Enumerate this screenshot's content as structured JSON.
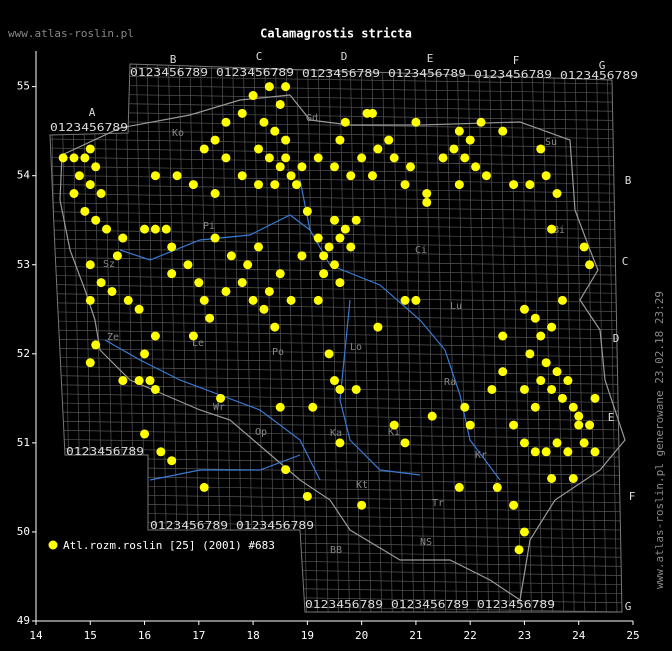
{
  "header": {
    "site": "www.atlas-roslin.pl",
    "title": "Calamagrostis stricta"
  },
  "side_note": "www.atlas-roslin.pl generowane 23.02.18 23:29",
  "grid_labels": {
    "columns": [
      "A",
      "B",
      "C",
      "D",
      "E",
      "F",
      "G"
    ],
    "digits": "0123456789"
  },
  "places": [
    "Ko",
    "Gd",
    "Su",
    "Pi",
    "Sz",
    "Ci",
    "Ze",
    "Le",
    "Po",
    "Lo",
    "Wr",
    "Lu",
    "Ki",
    "Ra",
    "Kt",
    "Tr",
    "NS",
    "BB",
    "Bi",
    "Ka",
    "Op",
    "Kr"
  ],
  "chart_data": {
    "type": "scatter",
    "xlim": [
      14,
      25
    ],
    "ylim": [
      49,
      55.4
    ],
    "xticks": [
      14,
      15,
      16,
      17,
      18,
      19,
      20,
      21,
      22,
      23,
      24,
      25
    ],
    "yticks": [
      49,
      50,
      51,
      52,
      53,
      54,
      55
    ],
    "series": [
      {
        "name": "Atl.rozm.roslin [25] (2001) #683",
        "color": "#ffff00",
        "x": [
          14.5,
          14.7,
          14.9,
          15.0,
          15.1,
          14.8,
          15.0,
          14.7,
          15.2,
          14.9,
          15.1,
          15.3,
          15.6,
          15.5,
          15.0,
          15.2,
          15.4,
          15.0,
          15.7,
          15.9,
          15.1,
          15.0,
          15.6,
          15.9,
          16.2,
          16.4,
          16.0,
          16.5,
          16.8,
          16.5,
          17.0,
          17.1,
          17.2,
          16.9,
          16.2,
          16.0,
          16.1,
          16.2,
          16.0,
          16.3,
          16.5,
          17.1,
          16.2,
          16.6,
          16.9,
          17.3,
          17.1,
          17.3,
          17.5,
          17.8,
          18.0,
          18.3,
          18.6,
          18.5,
          18.2,
          18.4,
          18.6,
          18.1,
          18.3,
          18.5,
          18.7,
          18.8,
          18.1,
          17.8,
          18.4,
          18.6,
          18.9,
          17.5,
          17.3,
          17.6,
          17.9,
          18.1,
          17.8,
          18.0,
          18.3,
          18.5,
          18.2,
          18.4,
          18.7,
          17.5,
          18.9,
          19.0,
          19.2,
          19.4,
          19.6,
          19.8,
          19.5,
          19.3,
          19.7,
          19.9,
          19.3,
          19.5,
          19.6,
          19.2,
          19.2,
          19.5,
          19.8,
          20.0,
          20.2,
          19.6,
          20.3,
          20.6,
          20.9,
          20.8,
          20.5,
          19.7,
          20.1,
          20.2,
          21.0,
          21.2,
          21.8,
          22.0,
          21.9,
          21.7,
          22.1,
          21.5,
          22.3,
          21.8,
          22.6,
          23.3,
          22.8,
          23.1,
          23.4,
          23.6,
          23.5,
          24.1,
          24.2,
          22.2,
          21.2,
          20.8,
          21.0,
          20.3,
          19.4,
          19.5,
          19.6,
          19.9,
          19.1,
          19.6,
          20.0,
          19.0,
          18.6,
          18.5,
          17.4,
          20.6,
          20.8,
          21.3,
          21.9,
          22.0,
          22.4,
          22.6,
          21.8,
          22.5,
          22.8,
          23.0,
          23.2,
          23.3,
          23.5,
          23.1,
          23.4,
          23.6,
          23.3,
          23.5,
          23.7,
          23.8,
          23.9,
          24.0,
          23.2,
          23.0,
          22.8,
          23.0,
          23.2,
          23.4,
          23.6,
          23.8,
          24.1,
          24.3,
          23.5,
          23.9,
          23.0,
          22.9,
          24.0,
          24.2,
          24.3,
          23.7,
          22.6
        ],
        "y": [
          54.2,
          54.2,
          54.2,
          54.3,
          54.1,
          54.0,
          53.9,
          53.8,
          53.8,
          53.6,
          53.5,
          53.4,
          53.3,
          53.1,
          53.0,
          52.8,
          52.7,
          52.6,
          52.6,
          52.5,
          52.1,
          51.9,
          51.7,
          51.7,
          53.4,
          53.4,
          53.4,
          53.2,
          53.0,
          52.9,
          52.8,
          52.6,
          52.4,
          52.2,
          52.2,
          52.0,
          51.7,
          51.6,
          51.1,
          50.9,
          50.8,
          50.5,
          54.0,
          54.0,
          53.9,
          53.8,
          54.3,
          54.4,
          54.6,
          54.7,
          54.9,
          55.0,
          55.0,
          54.8,
          54.6,
          54.5,
          54.4,
          54.3,
          54.2,
          54.1,
          54.0,
          53.9,
          53.9,
          54.0,
          53.9,
          54.2,
          54.1,
          54.2,
          53.3,
          53.1,
          53.0,
          53.2,
          52.8,
          52.6,
          52.7,
          52.9,
          52.5,
          52.3,
          52.6,
          52.7,
          53.1,
          53.6,
          53.3,
          53.2,
          53.3,
          53.2,
          53.0,
          53.1,
          53.4,
          53.5,
          52.9,
          53.5,
          52.8,
          52.6,
          54.2,
          54.1,
          54.0,
          54.2,
          54.0,
          54.4,
          54.3,
          54.2,
          54.1,
          53.9,
          54.4,
          54.6,
          54.7,
          54.7,
          54.6,
          53.8,
          54.5,
          54.4,
          54.2,
          54.3,
          54.1,
          54.2,
          54.0,
          53.9,
          54.5,
          54.3,
          53.9,
          53.9,
          54.0,
          53.8,
          53.4,
          53.2,
          53.0,
          54.6,
          53.7,
          52.6,
          52.6,
          52.3,
          52.0,
          51.7,
          51.6,
          51.6,
          51.4,
          51.0,
          50.3,
          50.4,
          50.7,
          51.4,
          51.5,
          51.2,
          51.0,
          51.3,
          51.4,
          51.2,
          51.6,
          51.8,
          50.5,
          50.5,
          50.3,
          52.5,
          52.4,
          52.2,
          52.3,
          52.0,
          51.9,
          51.8,
          51.7,
          51.6,
          51.5,
          51.7,
          51.4,
          51.3,
          51.4,
          51.6,
          51.2,
          51.0,
          50.9,
          50.9,
          51.0,
          50.9,
          51.0,
          50.9,
          50.6,
          50.6,
          50.0,
          49.8,
          51.2,
          51.2,
          51.5,
          52.6,
          52.2
        ]
      }
    ]
  }
}
